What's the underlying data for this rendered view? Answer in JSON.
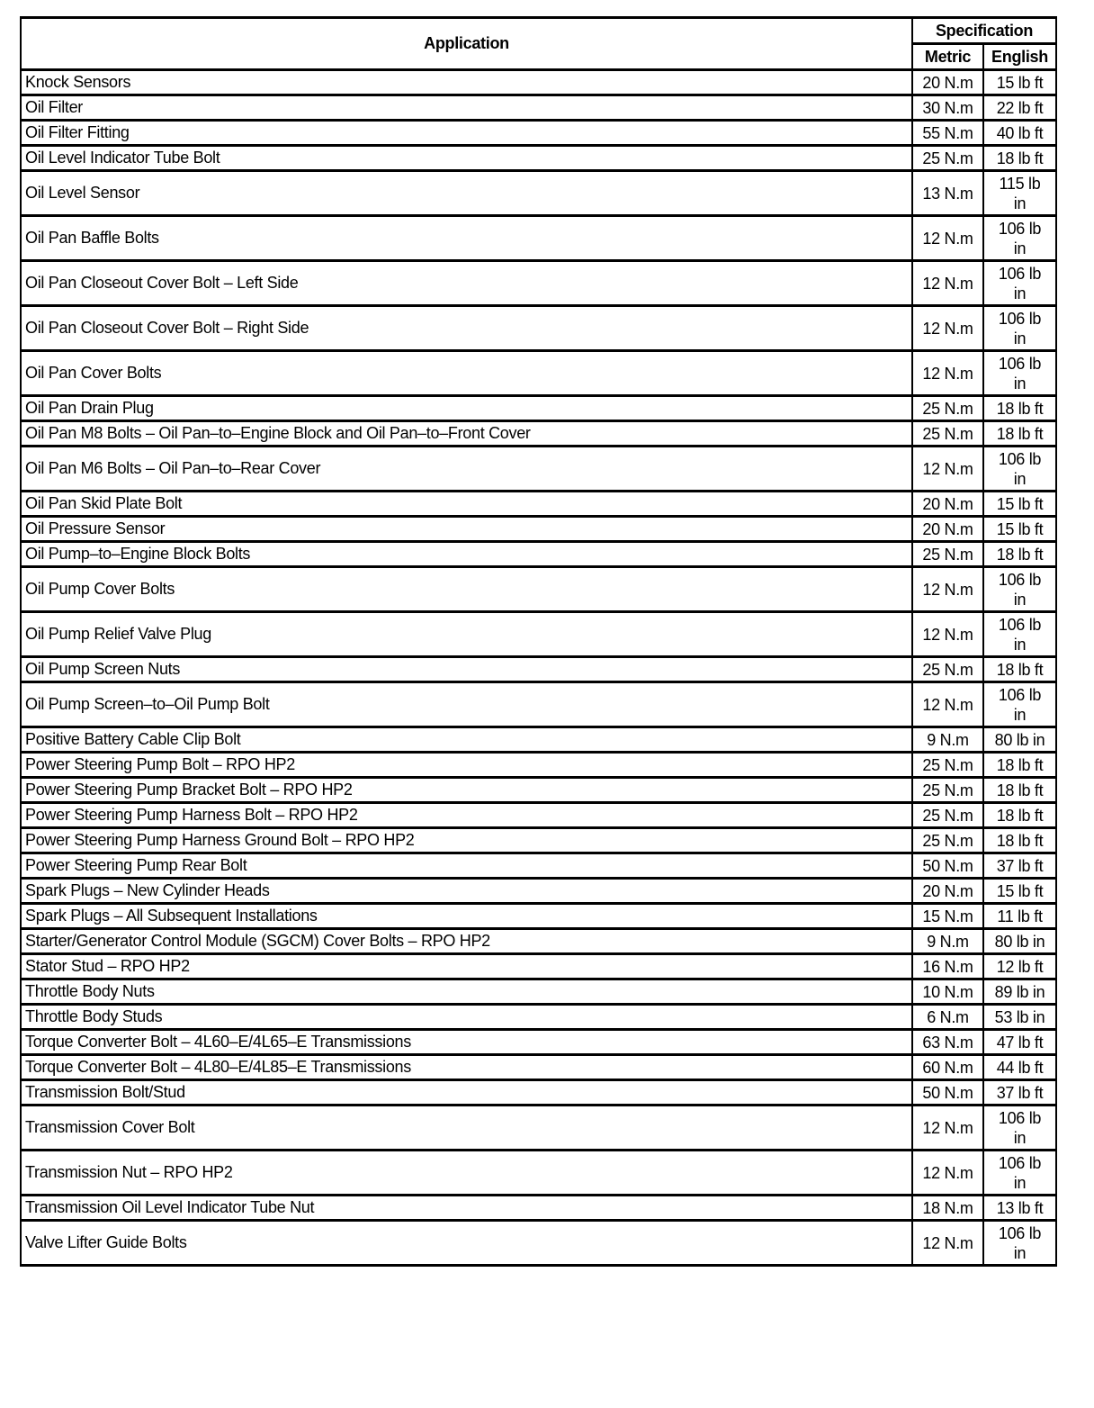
{
  "header": {
    "application": "Application",
    "specification": "Specification",
    "metric": "Metric",
    "english": "English"
  },
  "rows": [
    [
      "Knock Sensors",
      "20 N.m",
      "15 lb ft"
    ],
    [
      "Oil Filter",
      "30 N.m",
      "22 lb ft"
    ],
    [
      "Oil Filter Fitting",
      "55 N.m",
      "40 lb ft"
    ],
    [
      "Oil Level Indicator Tube Bolt",
      "25 N.m",
      "18 lb ft"
    ],
    [
      "Oil Level Sensor",
      "13 N.m",
      "115 lb in"
    ],
    [
      "Oil Pan Baffle Bolts",
      "12 N.m",
      "106 lb in"
    ],
    [
      "Oil Pan Closeout Cover Bolt – Left Side",
      "12 N.m",
      "106 lb in"
    ],
    [
      "Oil Pan Closeout Cover Bolt – Right Side",
      "12 N.m",
      "106 lb in"
    ],
    [
      "Oil Pan Cover Bolts",
      "12 N.m",
      "106 lb in"
    ],
    [
      "Oil Pan Drain Plug",
      "25 N.m",
      "18 lb ft"
    ],
    [
      "Oil Pan M8 Bolts – Oil Pan–to–Engine Block and Oil Pan–to–Front Cover",
      "25 N.m",
      "18 lb ft"
    ],
    [
      "Oil Pan M6 Bolts – Oil Pan–to–Rear Cover",
      "12 N.m",
      "106 lb in"
    ],
    [
      "Oil Pan Skid Plate Bolt",
      "20 N.m",
      "15 lb ft"
    ],
    [
      "Oil Pressure Sensor",
      "20 N.m",
      "15 lb ft"
    ],
    [
      "Oil Pump–to–Engine Block Bolts",
      "25 N.m",
      "18 lb ft"
    ],
    [
      "Oil Pump Cover Bolts",
      "12 N.m",
      "106 lb in"
    ],
    [
      "Oil Pump Relief Valve Plug",
      "12 N.m",
      "106 lb in"
    ],
    [
      "Oil Pump Screen Nuts",
      "25 N.m",
      "18 lb ft"
    ],
    [
      "Oil Pump Screen–to–Oil Pump Bolt",
      "12 N.m",
      "106 lb in"
    ],
    [
      "Positive Battery Cable Clip Bolt",
      "9 N.m",
      "80 lb in"
    ],
    [
      "Power Steering Pump Bolt – RPO HP2",
      "25 N.m",
      "18 lb ft"
    ],
    [
      "Power Steering Pump Bracket Bolt – RPO HP2",
      "25 N.m",
      "18 lb ft"
    ],
    [
      "Power Steering Pump Harness Bolt – RPO HP2",
      "25 N.m",
      "18 lb ft"
    ],
    [
      "Power Steering Pump Harness Ground Bolt – RPO HP2",
      "25 N.m",
      "18 lb ft"
    ],
    [
      "Power Steering Pump Rear Bolt",
      "50 N.m",
      "37 lb ft"
    ],
    [
      "Spark Plugs – New Cylinder Heads",
      "20 N.m",
      "15 lb ft"
    ],
    [
      "Spark Plugs – All Subsequent Installations",
      "15 N.m",
      "11 lb ft"
    ],
    [
      "Starter/Generator Control Module (SGCM) Cover Bolts – RPO HP2",
      "9 N.m",
      "80 lb in"
    ],
    [
      "Stator Stud – RPO HP2",
      "16 N.m",
      "12 lb ft"
    ],
    [
      "Throttle Body Nuts",
      "10 N.m",
      "89 lb in"
    ],
    [
      "Throttle Body Studs",
      "6 N.m",
      "53 lb in"
    ],
    [
      "Torque Converter Bolt – 4L60–E/4L65–E Transmissions",
      "63 N.m",
      "47 lb ft"
    ],
    [
      "Torque Converter Bolt – 4L80–E/4L85–E Transmissions",
      "60 N.m",
      "44 lb ft"
    ],
    [
      "Transmission Bolt/Stud",
      "50 N.m",
      "37 lb ft"
    ],
    [
      "Transmission Cover Bolt",
      "12 N.m",
      "106 lb in"
    ],
    [
      "Transmission Nut – RPO HP2",
      "12 N.m",
      "106 lb in"
    ],
    [
      "Transmission Oil Level Indicator Tube Nut",
      "18 N.m",
      "13 lb ft"
    ],
    [
      "Valve Lifter Guide Bolts",
      "12 N.m",
      "106 lb in"
    ]
  ]
}
